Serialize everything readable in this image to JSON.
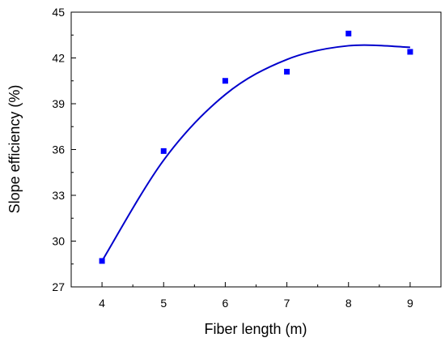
{
  "chart_data": {
    "type": "scatter",
    "title": "",
    "xlabel": "Fiber length (m)",
    "ylabel": "Slope efficiency (%)",
    "xlim": [
      3.5,
      9.5
    ],
    "ylim": [
      27,
      45
    ],
    "xticks": [
      4,
      5,
      6,
      7,
      8,
      9
    ],
    "xtick_labels": [
      "4",
      "5",
      "6",
      "7",
      "8",
      "9"
    ],
    "yticks": [
      27,
      30,
      33,
      36,
      39,
      42,
      45
    ],
    "ytick_labels": [
      "27",
      "30",
      "33",
      "36",
      "39",
      "42",
      "45"
    ],
    "grid": false,
    "legend": "none",
    "series": [
      {
        "marker": "square",
        "color": "#0000ff",
        "x": [
          4,
          5,
          6,
          7,
          8,
          9
        ],
        "y": [
          28.7,
          35.9,
          40.5,
          41.1,
          43.6,
          42.4
        ]
      }
    ],
    "fit_curve": {
      "type": "polynomial-fit",
      "color": "#0000cc",
      "x": [
        4,
        5,
        6,
        7,
        8,
        9
      ],
      "y": [
        28.7,
        35.3,
        39.6,
        41.9,
        42.8,
        42.7
      ]
    }
  }
}
